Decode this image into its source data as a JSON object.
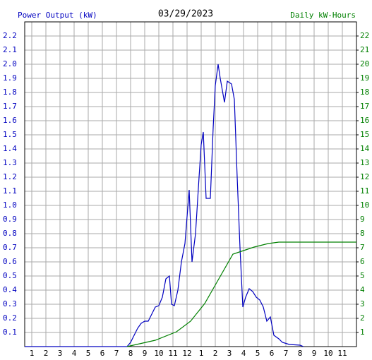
{
  "chart_data": {
    "type": "line",
    "title": "03/29/2023",
    "y_label": "Power Output (kW)",
    "y2_label": "Daily kW-Hours",
    "xlim": [
      0.5,
      24
    ],
    "xticks": [
      1,
      2,
      3,
      4,
      5,
      6,
      7,
      8,
      9,
      10,
      11,
      12,
      {
        "value": 13,
        "label": "1"
      },
      {
        "value": 14,
        "label": "2"
      },
      {
        "value": 15,
        "label": "3"
      },
      {
        "value": 16,
        "label": "4"
      },
      {
        "value": 17,
        "label": "5"
      },
      {
        "value": 18,
        "label": "6"
      },
      {
        "value": 19,
        "label": "7"
      },
      {
        "value": 20,
        "label": "8"
      },
      {
        "value": 21,
        "label": "9"
      },
      {
        "value": 22,
        "label": "10"
      },
      {
        "value": 23,
        "label": "11"
      }
    ],
    "ylim": [
      0,
      2.3
    ],
    "yticks": [
      0.1,
      0.2,
      0.3,
      0.4,
      0.5,
      0.6,
      0.7,
      0.8,
      0.9,
      {
        "value": 1.0,
        "label": "1.0"
      },
      1.1,
      1.2,
      1.3,
      1.4,
      1.5,
      1.6,
      1.7,
      1.8,
      1.9,
      {
        "value": 2.0,
        "label": "2.0"
      },
      2.1,
      2.2
    ],
    "y2lim": [
      0,
      23
    ],
    "y2ticks": [
      1,
      2,
      3,
      4,
      5,
      6,
      7,
      8,
      9,
      10,
      11,
      12,
      13,
      14,
      15,
      16,
      17,
      18,
      19,
      20,
      21,
      22
    ],
    "grid": true,
    "series": [
      {
        "name": "Power Output (kW)",
        "color": "#0000c0",
        "x": [
          0.5,
          7.75,
          8.0,
          8.25,
          8.5,
          8.75,
          9.0,
          9.25,
          9.5,
          9.75,
          10,
          10.25,
          10.5,
          10.75,
          10.9,
          11.1,
          11.35,
          11.6,
          11.85,
          12.15,
          12.35,
          12.6,
          12.85,
          13.0,
          13.15,
          13.35,
          13.65,
          13.85,
          14.0,
          14.2,
          14.35,
          14.65,
          14.85,
          15.15,
          15.35,
          15.55,
          15.75,
          15.95,
          16.15,
          16.4,
          16.65,
          16.9,
          17.15,
          17.4,
          17.65,
          17.9,
          18.15,
          18.5,
          18.75,
          19.25,
          20.0,
          20.25
        ],
        "values": [
          0,
          0,
          0.03,
          0.08,
          0.13,
          0.165,
          0.18,
          0.18,
          0.23,
          0.28,
          0.29,
          0.35,
          0.48,
          0.5,
          0.3,
          0.29,
          0.4,
          0.6,
          0.73,
          1.11,
          0.6,
          0.8,
          1.2,
          1.43,
          1.52,
          1.05,
          1.05,
          1.55,
          1.85,
          2.0,
          1.9,
          1.73,
          1.88,
          1.86,
          1.75,
          1.2,
          0.7,
          0.28,
          0.35,
          0.41,
          0.39,
          0.35,
          0.33,
          0.28,
          0.18,
          0.21,
          0.08,
          0.055,
          0.03,
          0.015,
          0.01,
          0
        ]
      },
      {
        "name": "Daily kW-Hours",
        "color": "#008000",
        "axis": "y2",
        "x": [
          7.75,
          9.75,
          11.25,
          12.25,
          13.25,
          14.25,
          15.25,
          16.0,
          16.75,
          17.75,
          18.5,
          24
        ],
        "values": [
          0,
          0.45,
          1.05,
          1.8,
          3.05,
          4.8,
          6.55,
          6.8,
          7.05,
          7.3,
          7.4,
          7.4
        ]
      }
    ]
  }
}
